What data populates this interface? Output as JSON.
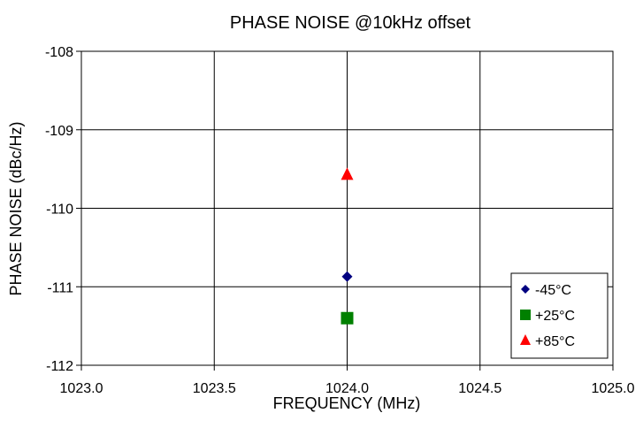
{
  "chart_data": {
    "type": "scatter",
    "title": "PHASE NOISE @10kHz offset",
    "xlabel": "FREQUENCY (MHz)",
    "ylabel": "PHASE NOISE  (dBc/Hz)",
    "xlim": [
      1023.0,
      1025.0
    ],
    "ylim": [
      -112,
      -108
    ],
    "xticks": [
      "1023.0",
      "1023.5",
      "1024.0",
      "1024.5",
      "1025.0"
    ],
    "yticks": [
      "-108",
      "-109",
      "-110",
      "-111",
      "-112"
    ],
    "grid": true,
    "legend_position": "bottom-right",
    "series": [
      {
        "name": "-45°C",
        "marker": "diamond",
        "color": "#000080",
        "x": [
          1024.0
        ],
        "y": [
          -110.87
        ]
      },
      {
        "name": "+25°C",
        "marker": "square",
        "color": "#008000",
        "x": [
          1024.0
        ],
        "y": [
          -111.4
        ]
      },
      {
        "name": "+85°C",
        "marker": "triangle",
        "color": "#ff0000",
        "x": [
          1024.0
        ],
        "y": [
          -109.57
        ]
      }
    ]
  }
}
